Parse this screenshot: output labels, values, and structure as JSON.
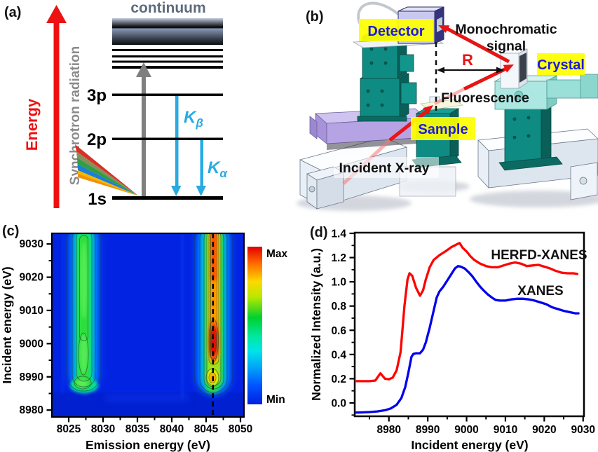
{
  "panels": {
    "a": {
      "tag": "(a)",
      "energy_label": "Energy",
      "synchrotron_label": "Synchrotron radiation",
      "continuum_label": "continuum",
      "level_3p": "3p",
      "level_2p": "2p",
      "level_1s": "1s",
      "kbeta_main": "K",
      "kbeta_sub": "β",
      "kalpha_main": "K",
      "kalpha_sub": "α"
    },
    "b": {
      "tag": "(b)",
      "detector_label": "Detector",
      "monochromatic_line1": "Monochromatic",
      "monochromatic_line2": "signal",
      "distance_label": "R",
      "crystal_label": "Crystal",
      "fluorescence_label": "Fluorescence",
      "sample_label": "Sample",
      "incident_label": "Incident X-ray"
    },
    "c": {
      "tag": "(c)",
      "xlabel": "Emission energy (eV)",
      "ylabel": "Incident energy (eV)",
      "colorbar_max": "Max",
      "colorbar_min": "Min"
    },
    "d": {
      "tag": "(d)",
      "xlabel": "Incident energy (eV)",
      "ylabel": "Normalized Intensity (a.u.)",
      "series_label_red": "HERFD-XANES",
      "series_label_blue": "XANES"
    }
  },
  "colors": {
    "red_accent": "#ee1111",
    "cyan_arrow": "#29abe2",
    "gray_arrow": "#7f7f7f",
    "continuum_text": "#5d6b7b",
    "label_highlight": "#ffff00",
    "label_text_blue": "#1a1ae0",
    "herfd_curve": "#ff0000",
    "xanes_curve": "#0000ee",
    "heatmap_background": "#0224e2"
  },
  "chart_data": [
    {
      "panel": "c",
      "type": "heatmap",
      "xlabel": "Emission energy (eV)",
      "ylabel": "Incident energy (eV)",
      "xlim": [
        8022.5,
        8050.5
      ],
      "ylim": [
        8978,
        9033
      ],
      "x_ticks": [
        8025,
        8030,
        8035,
        8040,
        8045,
        8050
      ],
      "y_ticks": [
        8980,
        8990,
        9000,
        9010,
        9020,
        9030
      ],
      "colorbar": {
        "max_label": "Max",
        "min_label": "Min",
        "orientation": "vertical-right"
      },
      "dashed_line_emission": 8046,
      "features": [
        {
          "name": "Kbeta-prime satellite column",
          "emission_center": 8027,
          "emission_width": 4,
          "incident_extent": [
            8988,
            9033
          ],
          "relative_intensity": "medium",
          "peak_color": "green"
        },
        {
          "name": "Kbeta1,3 main emission column",
          "emission_center": 8046,
          "emission_width": 4,
          "incident_extent": [
            8988,
            9033
          ],
          "hotspot_incident_center": 9001,
          "hotspot_incident_range": [
            8995,
            9007
          ],
          "secondary_blob_incident": 8990,
          "relative_intensity": "max",
          "peak_color": "red"
        }
      ],
      "grid": false
    },
    {
      "panel": "d",
      "type": "line",
      "xlabel": "Incident energy (eV)",
      "ylabel": "Normalized Intensity (a.u.)",
      "xlim": [
        8971,
        9030
      ],
      "ylim": [
        -0.13,
        1.4
      ],
      "x_ticks": [
        8980,
        8990,
        9000,
        9010,
        9020,
        9030
      ],
      "y_ticks": [
        0.0,
        0.2,
        0.4,
        0.6,
        0.8,
        1.0,
        1.2,
        1.4
      ],
      "legend_position": "inline-labels",
      "series": [
        {
          "name": "HERFD-XANES",
          "color": "#ff0000",
          "points": [
            [
              8971,
              0.18
            ],
            [
              8973,
              0.18
            ],
            [
              8975,
              0.18
            ],
            [
              8976.5,
              0.185
            ],
            [
              8977.8,
              0.245
            ],
            [
              8979,
              0.2
            ],
            [
              8980,
              0.195
            ],
            [
              8981,
              0.21
            ],
            [
              8982,
              0.27
            ],
            [
              8983,
              0.42
            ],
            [
              8984,
              0.8
            ],
            [
              8984.8,
              1.02
            ],
            [
              8985.3,
              1.07
            ],
            [
              8986,
              1.05
            ],
            [
              8987,
              0.95
            ],
            [
              8988,
              0.885
            ],
            [
              8988.8,
              0.93
            ],
            [
              8989.5,
              1.02
            ],
            [
              8990.5,
              1.12
            ],
            [
              8991.5,
              1.18
            ],
            [
              8993,
              1.22
            ],
            [
              8994.5,
              1.25
            ],
            [
              8996,
              1.285
            ],
            [
              8997.5,
              1.31
            ],
            [
              8998.2,
              1.32
            ],
            [
              8999,
              1.28
            ],
            [
              9000,
              1.25
            ],
            [
              9001,
              1.21
            ],
            [
              9002,
              1.18
            ],
            [
              9003.5,
              1.15
            ],
            [
              9005,
              1.13
            ],
            [
              9006.5,
              1.12
            ],
            [
              9008,
              1.12
            ],
            [
              9009.5,
              1.135
            ],
            [
              9011,
              1.15
            ],
            [
              9012.5,
              1.16
            ],
            [
              9014,
              1.15
            ],
            [
              9015.5,
              1.13
            ],
            [
              9017,
              1.135
            ],
            [
              9018.5,
              1.14
            ],
            [
              9020,
              1.125
            ],
            [
              9021.5,
              1.11
            ],
            [
              9023,
              1.09
            ],
            [
              9024.5,
              1.075
            ],
            [
              9026,
              1.07
            ],
            [
              9027.5,
              1.07
            ],
            [
              9028.5,
              1.065
            ]
          ]
        },
        {
          "name": "XANES",
          "color": "#0000ee",
          "points": [
            [
              8971,
              -0.08
            ],
            [
              8973,
              -0.078
            ],
            [
              8975,
              -0.075
            ],
            [
              8977,
              -0.07
            ],
            [
              8979,
              -0.06
            ],
            [
              8980.5,
              -0.045
            ],
            [
              8982,
              -0.015
            ],
            [
              8983.2,
              0.04
            ],
            [
              8984.2,
              0.13
            ],
            [
              8985,
              0.25
            ],
            [
              8985.8,
              0.38
            ],
            [
              8986.3,
              0.405
            ],
            [
              8987,
              0.41
            ],
            [
              8988,
              0.41
            ],
            [
              8988.8,
              0.44
            ],
            [
              8989.5,
              0.5
            ],
            [
              8990.5,
              0.62
            ],
            [
              8991.5,
              0.76
            ],
            [
              8992.3,
              0.87
            ],
            [
              8993,
              0.92
            ],
            [
              8994,
              0.96
            ],
            [
              8995,
              1.01
            ],
            [
              8996,
              1.06
            ],
            [
              8997,
              1.11
            ],
            [
              8997.8,
              1.13
            ],
            [
              8998.5,
              1.125
            ],
            [
              8999.5,
              1.11
            ],
            [
              9000.5,
              1.08
            ],
            [
              9001.5,
              1.045
            ],
            [
              9002.5,
              1.0
            ],
            [
              9003.5,
              0.96
            ],
            [
              9004.5,
              0.925
            ],
            [
              9005.5,
              0.895
            ],
            [
              9006.5,
              0.87
            ],
            [
              9007.5,
              0.85
            ],
            [
              9008.5,
              0.845
            ],
            [
              9010,
              0.845
            ],
            [
              9011.5,
              0.855
            ],
            [
              9013,
              0.86
            ],
            [
              9014.5,
              0.86
            ],
            [
              9016,
              0.855
            ],
            [
              9017.5,
              0.845
            ],
            [
              9019,
              0.83
            ],
            [
              9020.5,
              0.815
            ],
            [
              9022,
              0.79
            ],
            [
              9023.5,
              0.775
            ],
            [
              9025,
              0.76
            ],
            [
              9026.5,
              0.75
            ],
            [
              9028,
              0.74
            ],
            [
              9028.8,
              0.74
            ]
          ]
        }
      ]
    }
  ]
}
